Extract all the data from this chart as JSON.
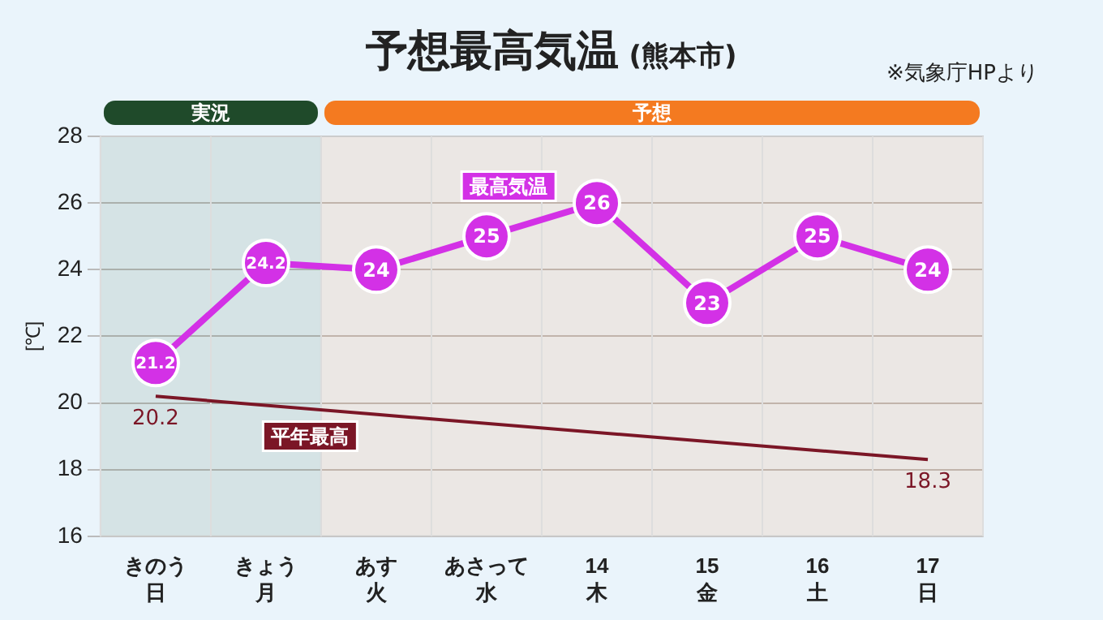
{
  "chart_data": {
    "type": "line",
    "title": "予想最高気温",
    "subtitle": "(熊本市)",
    "ylabel": "[℃]",
    "annotations": [
      "※気象庁HPより",
      "日",
      "月",
      "火",
      "水",
      "木",
      "金",
      "土",
      "日"
    ],
    "categories": [
      "きのう",
      "きょう",
      "あす",
      "あさって",
      "14",
      "15",
      "16",
      "17"
    ],
    "series": [
      {
        "name": "最高気温",
        "color": "#d331e6",
        "marker": "circle",
        "values": [
          21.2,
          24.2,
          24,
          25,
          26,
          23,
          25,
          24
        ]
      },
      {
        "name": "平年最高",
        "color": "#7b1626",
        "marker": "none",
        "values": [
          20.2,
          null,
          null,
          null,
          null,
          null,
          null,
          18.3
        ],
        "value_labels": [
          "20.2",
          null,
          null,
          null,
          null,
          null,
          null,
          "18.3"
        ]
      }
    ],
    "data_labels": true,
    "bands": [
      {
        "axis": "x",
        "from": "きのう",
        "to": "きょう",
        "label": "実況",
        "color": "#1f4a2a"
      },
      {
        "axis": "x",
        "from": "あす",
        "to": "17",
        "label": "予想",
        "color": "#f47a20"
      }
    ],
    "ylim": [
      16,
      28
    ],
    "yticks": [
      16,
      18,
      20,
      22,
      24,
      26,
      28
    ],
    "grid": "y",
    "legend": false,
    "line_style": "solid"
  }
}
